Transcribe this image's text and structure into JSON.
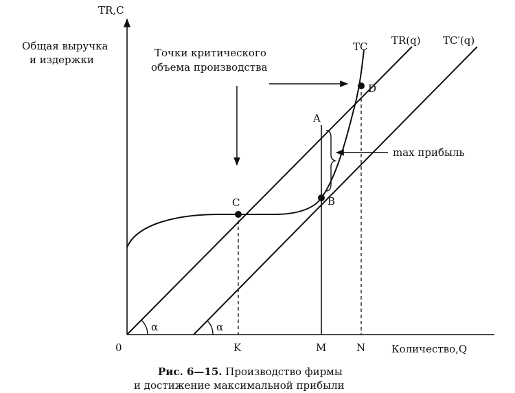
{
  "axes": {
    "y_label": "TR,C",
    "y_title_line1": "Общая выручка",
    "y_title_line2": "и издержки",
    "x_label": "Количество,Q",
    "origin": "0"
  },
  "curves": {
    "tr": "TR(q)",
    "tc": "TC",
    "tc_prime": "TC′(q)"
  },
  "angles": {
    "alpha1": "α",
    "alpha2": "α"
  },
  "points": {
    "a": "A",
    "b": "B",
    "c": "C",
    "d": "D"
  },
  "ticks": {
    "k": "K",
    "m": "M",
    "n": "N"
  },
  "annotations": {
    "critical_line1": "Точки критического",
    "critical_line2": "объема производства",
    "max_profit": "max прибыль"
  },
  "caption": {
    "number": "Рис. 6—15.",
    "line1_rest": " Производство фирмы",
    "line2": "и достижение максимальной прибыли"
  }
}
